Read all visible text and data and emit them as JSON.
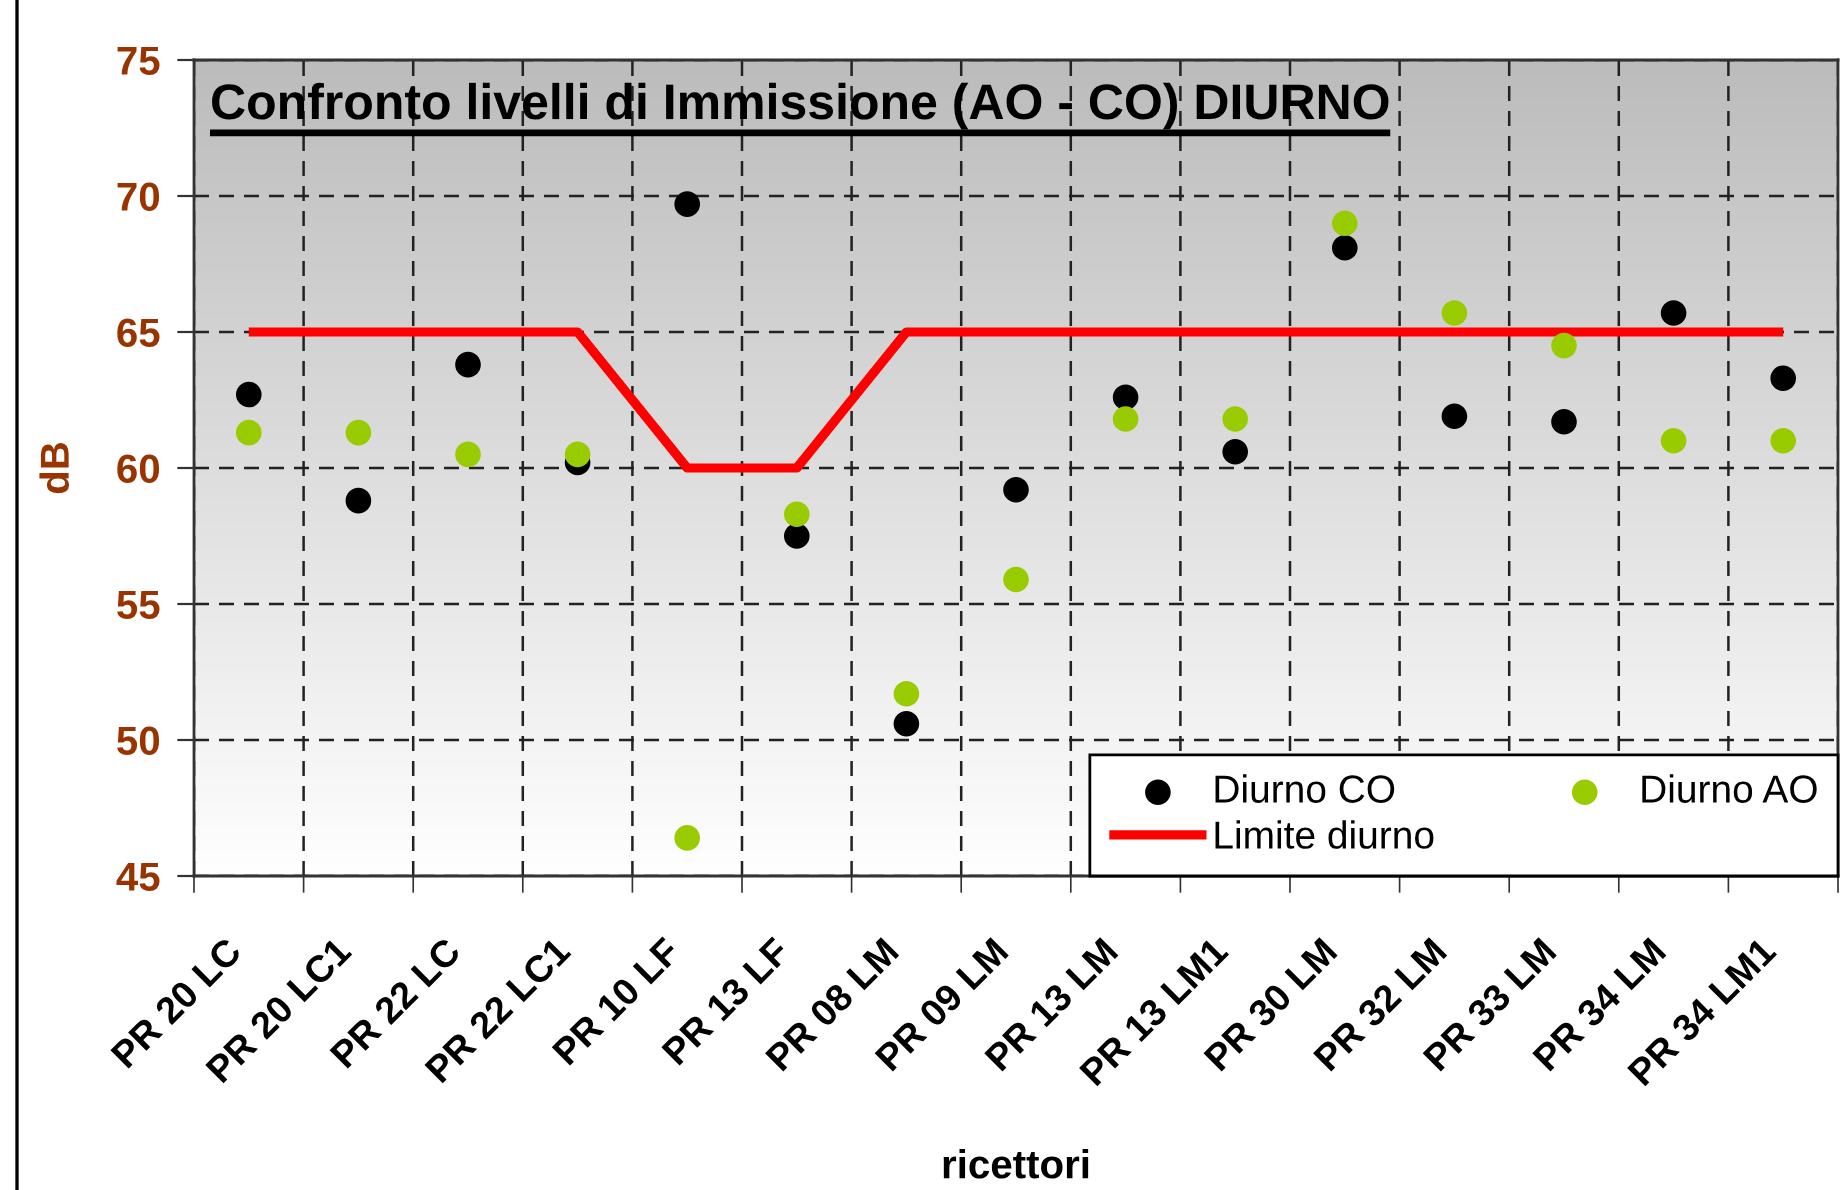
{
  "chart_data": {
    "type": "scatter",
    "title": "Confronto livelli di Immissione (AO - CO) DIURNO",
    "xlabel": "ricettori",
    "ylabel": "dB",
    "categories": [
      "PR 20 LC",
      "PR 20 LC1",
      "PR 22 LC",
      "PR 22 LC1",
      "PR 10 LF",
      "PR 13 LF",
      "PR 08 LM",
      "PR 09 LM",
      "PR 13 LM",
      "PR 13 LM1",
      "PR 30 LM",
      "PR 32 LM",
      "PR 33 LM",
      "PR 34 LM",
      "PR 34 LM1"
    ],
    "series": [
      {
        "name": "Diurno CO",
        "color": "#000000",
        "values": [
          62.7,
          58.8,
          63.8,
          60.2,
          69.7,
          57.5,
          50.6,
          59.2,
          62.6,
          60.6,
          68.1,
          61.9,
          61.7,
          65.7,
          63.3
        ]
      },
      {
        "name": "Diurno AO",
        "color": "#99cc00",
        "values": [
          61.3,
          61.3,
          60.5,
          60.5,
          46.4,
          58.3,
          51.7,
          55.9,
          61.8,
          61.8,
          69.0,
          65.7,
          64.5,
          61.0,
          61.0
        ]
      },
      {
        "name": "Limite diurno",
        "type": "line",
        "marker": "none",
        "color": "#ff0000",
        "values": [
          65,
          65,
          65,
          65,
          60,
          60,
          65,
          65,
          65,
          65,
          65,
          65,
          65,
          65,
          65
        ]
      }
    ],
    "ylim": [
      45,
      75
    ],
    "yticks": [
      45,
      50,
      55,
      60,
      65,
      70,
      75
    ],
    "grid": true,
    "legend": "bottom right",
    "marker": "circle"
  }
}
